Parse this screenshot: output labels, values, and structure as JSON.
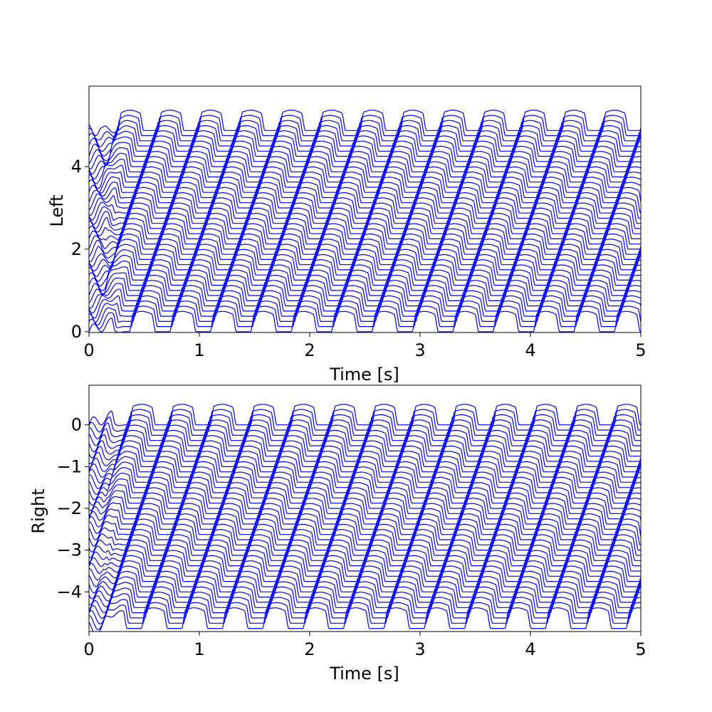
{
  "chart_data": [
    {
      "type": "line",
      "title": "",
      "xlabel": "Time [s]",
      "ylabel": "Left",
      "xlim": [
        0,
        5
      ],
      "ylim": [
        -0.02,
        5.95
      ],
      "xticks": [
        0,
        1,
        2,
        3,
        4,
        5
      ],
      "yticks": [
        0,
        2,
        4
      ],
      "grid": false,
      "line_color": "#0000ff",
      "description": "stacked traces of a traveling wave, one per segment",
      "series_count": 40,
      "baseline_first": 0.0,
      "baseline_step": 0.125,
      "amplitude": 0.45,
      "period": 0.366,
      "phase_lag_per_trace": 0.016,
      "duty_cycle": 0.55,
      "steady_state_start": 0.35
    },
    {
      "type": "line",
      "title": "",
      "xlabel": "Time [s]",
      "ylabel": "Right",
      "xlim": [
        0,
        5
      ],
      "ylim": [
        -4.95,
        0.95
      ],
      "xticks": [
        0,
        1,
        2,
        3,
        4,
        5
      ],
      "yticks": [
        0,
        -1,
        -2,
        -3,
        -4
      ],
      "grid": false,
      "line_color": "#0000ff",
      "description": "stacked traces of a traveling wave, one per segment",
      "series_count": 40,
      "baseline_first": 0.0,
      "baseline_step": -0.125,
      "amplitude": 0.45,
      "period": 0.366,
      "phase_lag_per_trace": -0.016,
      "duty_cycle": 0.55,
      "steady_state_start": 0.35
    }
  ]
}
